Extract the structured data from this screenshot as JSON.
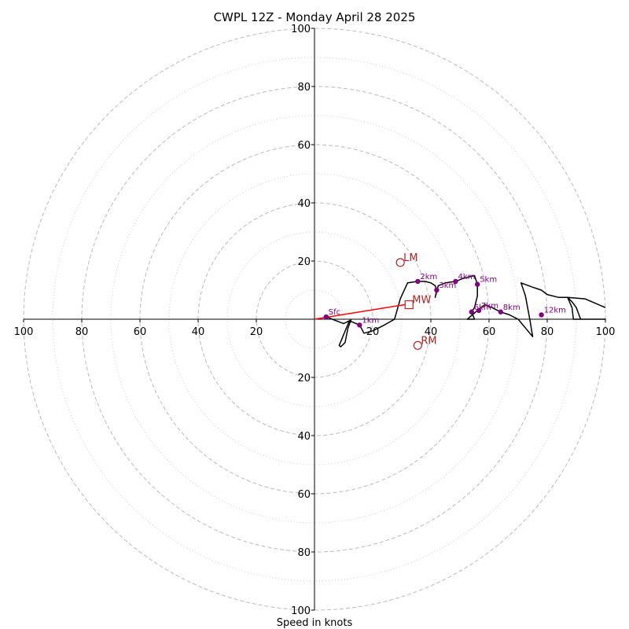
{
  "chart_data": {
    "type": "hodograph",
    "title": "CWPL 12Z - Monday April 28 2025",
    "xlabel": "Speed in knots",
    "range": [
      -100,
      100
    ],
    "major_rings": [
      20,
      40,
      60,
      80,
      100
    ],
    "minor_rings": [
      10,
      30,
      50,
      70,
      90
    ],
    "axis_tick_values": [
      20,
      40,
      60,
      80,
      100
    ],
    "axis_ticks": {
      "left": [
        "100",
        "80",
        "60",
        "40",
        "20"
      ],
      "right": [
        "20",
        "40",
        "60",
        "80",
        "100"
      ],
      "top": [
        "20",
        "40",
        "60",
        "80",
        "100"
      ],
      "bottom": [
        "20",
        "40",
        "60",
        "80",
        "100"
      ]
    },
    "colors": {
      "trace": "#000000",
      "height_marker": "#800080",
      "motion": "#b22222",
      "mean_wind_vector": "#ff0000",
      "major_ring": "#bbbbbb",
      "minor_ring": "#cccccc"
    },
    "trace": [
      {
        "u": 4,
        "v": 0.8
      },
      {
        "u": 10,
        "v": -1.5
      },
      {
        "u": 12.5,
        "v": -0.3
      },
      {
        "u": 11.5,
        "v": -3
      },
      {
        "u": 10.5,
        "v": -8
      },
      {
        "u": 9,
        "v": -9.5
      },
      {
        "u": 8.5,
        "v": -9
      },
      {
        "u": 12,
        "v": -0.5
      },
      {
        "u": 15.5,
        "v": -2
      },
      {
        "u": 17,
        "v": -4.8
      },
      {
        "u": 20,
        "v": -4
      },
      {
        "u": 24,
        "v": -2
      },
      {
        "u": 27.5,
        "v": 0
      },
      {
        "u": 29.5,
        "v": 7
      },
      {
        "u": 32,
        "v": 12.5
      },
      {
        "u": 35.5,
        "v": 13
      },
      {
        "u": 38,
        "v": 13
      },
      {
        "u": 40,
        "v": 12.5
      },
      {
        "u": 41.5,
        "v": 11.5
      },
      {
        "u": 42,
        "v": 10
      },
      {
        "u": 41.5,
        "v": 7.5
      },
      {
        "u": 42.5,
        "v": 11.5
      },
      {
        "u": 45,
        "v": 12.5
      },
      {
        "u": 48.5,
        "v": 13
      },
      {
        "u": 51,
        "v": 14
      },
      {
        "u": 55,
        "v": 15
      },
      {
        "u": 56,
        "v": 12
      },
      {
        "u": 56,
        "v": 8
      },
      {
        "u": 55,
        "v": 4
      },
      {
        "u": 54,
        "v": 2.5
      },
      {
        "u": 55,
        "v": 0
      },
      {
        "u": 52.5,
        "v": 0
      },
      {
        "u": 56,
        "v": 3
      },
      {
        "u": 58.5,
        "v": 5
      },
      {
        "u": 61,
        "v": 4
      },
      {
        "u": 64,
        "v": 2.5
      },
      {
        "u": 67,
        "v": 1.5
      },
      {
        "u": 70,
        "v": 0
      },
      {
        "u": 75,
        "v": -6
      },
      {
        "u": 74,
        "v": 0
      },
      {
        "u": 72.5,
        "v": 8
      },
      {
        "u": 71,
        "v": 12.5
      },
      {
        "u": 75,
        "v": 11
      },
      {
        "u": 78,
        "v": 10
      },
      {
        "u": 80,
        "v": 8.5
      },
      {
        "u": 84,
        "v": 7.5
      },
      {
        "u": 87,
        "v": 7.5
      },
      {
        "u": 88.5,
        "v": 6
      },
      {
        "u": 90,
        "v": 4
      },
      {
        "u": 91.5,
        "v": 0
      },
      {
        "u": 100,
        "v": 0
      },
      {
        "u": 89,
        "v": 0
      },
      {
        "u": 88.5,
        "v": 4
      },
      {
        "u": 87,
        "v": 7.5
      },
      {
        "u": 93,
        "v": 7
      },
      {
        "u": 100,
        "v": 4
      }
    ],
    "height_markers": [
      {
        "label": "Sfc",
        "u": 4,
        "v": 0.8
      },
      {
        "label": "1km",
        "u": 15.5,
        "v": -2
      },
      {
        "label": "2km",
        "u": 35.5,
        "v": 13
      },
      {
        "label": "3km",
        "u": 42,
        "v": 10
      },
      {
        "label": "4km",
        "u": 48.5,
        "v": 13
      },
      {
        "label": "5km",
        "u": 56,
        "v": 12
      },
      {
        "label": "6km",
        "u": 54,
        "v": 2.5
      },
      {
        "label": "7km",
        "u": 56.5,
        "v": 3
      },
      {
        "label": "8km",
        "u": 64,
        "v": 2.5
      },
      {
        "label": "12km",
        "u": 78,
        "v": 1.5
      }
    ],
    "motions": [
      {
        "label": "LM",
        "u": 29.5,
        "v": 19.5,
        "marker": "circle"
      },
      {
        "label": "RM",
        "u": 35.5,
        "v": -9,
        "marker": "circle"
      },
      {
        "label": "MW",
        "u": 32.5,
        "v": 5,
        "marker": "square"
      }
    ],
    "mean_wind_vector": {
      "u": 31,
      "v": 5
    }
  }
}
